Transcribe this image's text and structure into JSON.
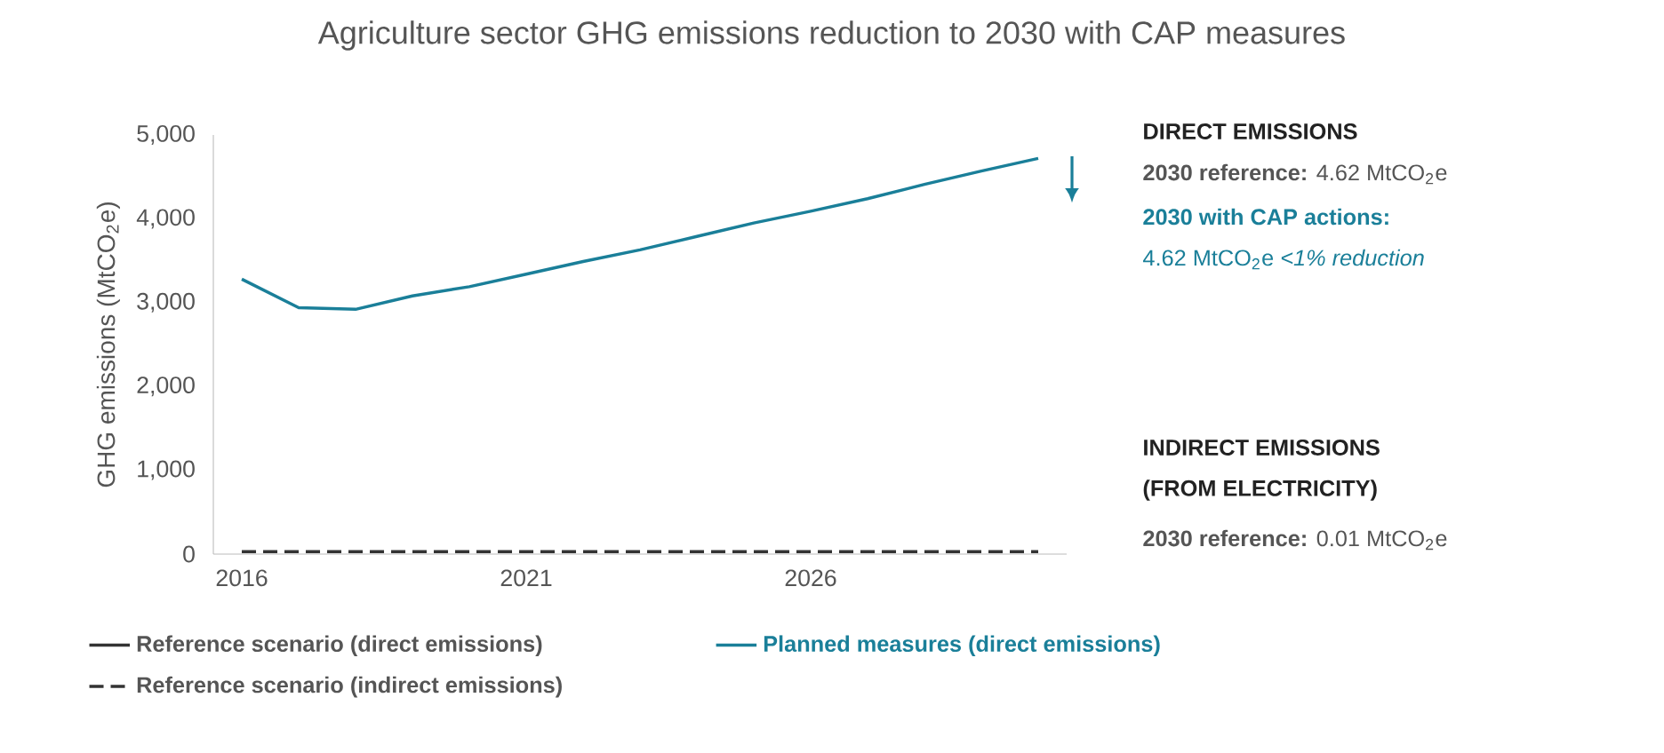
{
  "chart_data": {
    "type": "line",
    "title": "Agriculture sector GHG emissions reduction to 2030 with CAP measures",
    "ylabel": "GHG emissions (MtCO$_{2}$e)",
    "x": [
      2016,
      2017,
      2018,
      2019,
      2020,
      2021,
      2022,
      2023,
      2024,
      2025,
      2026,
      2027,
      2028,
      2029,
      2030
    ],
    "xlim": [
      2015.5,
      2030.5
    ],
    "xticks": [
      2016,
      2021,
      2026
    ],
    "ylim": [
      0,
      5000
    ],
    "yticks": [
      0,
      {
        "value": 1000,
        "label": "1,000"
      },
      {
        "value": 2000,
        "label": "2,000"
      },
      {
        "value": 3000,
        "label": "3,000"
      },
      {
        "value": 4000,
        "label": "4,000"
      },
      {
        "value": 5000,
        "label": "5,000"
      }
    ],
    "series": [
      {
        "name": "Reference scenario (direct emissions)",
        "color": "#333333",
        "values": [
          null,
          null,
          null,
          null,
          null,
          null,
          null,
          null,
          null,
          null,
          null,
          null,
          null,
          null,
          null
        ]
      },
      {
        "name": "Planned measures (direct emissions)",
        "color": "#1a7f99",
        "values": [
          3280,
          2940,
          2920,
          3080,
          3190,
          3340,
          3490,
          3630,
          3790,
          3950,
          4090,
          4240,
          4410,
          4570,
          4720
        ]
      },
      {
        "name": "Reference scenario (indirect emissions)",
        "color": "#333333",
        "line_style": "dashed",
        "values": [
          30,
          30,
          30,
          30,
          30,
          30,
          30,
          30,
          30,
          30,
          30,
          30,
          30,
          30,
          30
        ]
      }
    ],
    "annotations": [
      "DIRECT EMISSIONS",
      "**2030 reference:** 4.62 MtCO$_{2}$e",
      "2030 with CAP actions:",
      "4.62 MtCO$_{2}$e   *<1% reduction*",
      "INDIRECT EMISSIONS",
      "(FROM ELECTRICITY)",
      "**2030 reference:** 0.01 MtCO$_{2}$e"
    ],
    "grid": false,
    "legend": "bottom",
    "marker": "none"
  }
}
